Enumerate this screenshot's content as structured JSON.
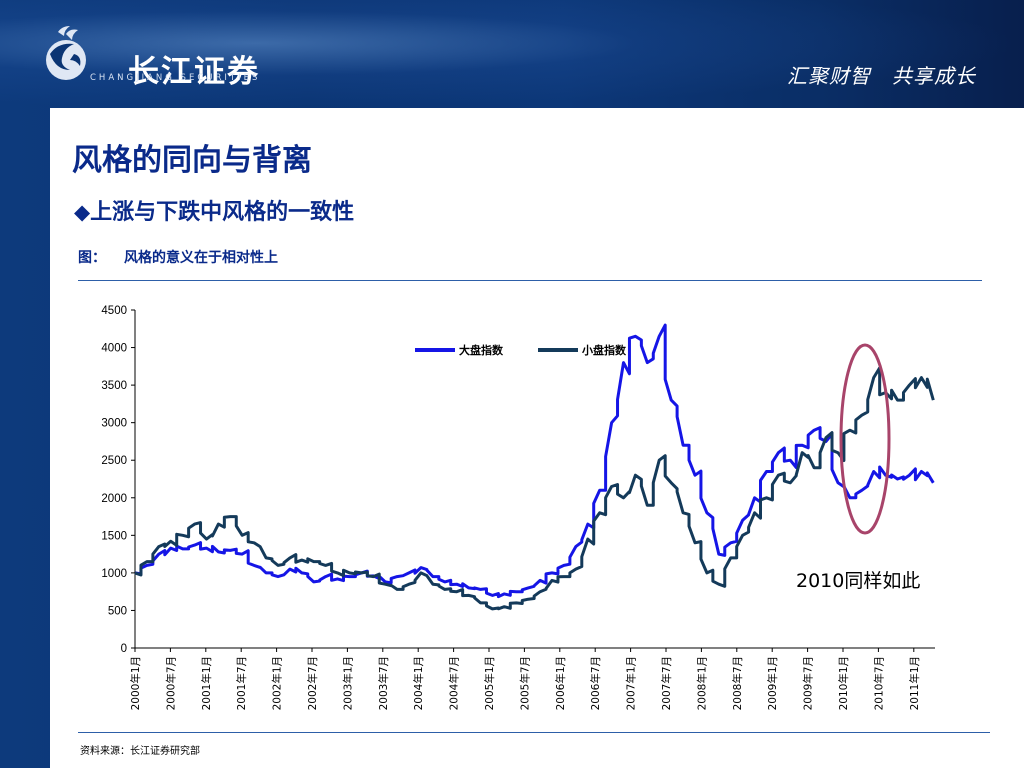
{
  "header": {
    "logo_cn": "长江证券",
    "logo_en": "CHANGJIANG SECURITIES",
    "slogan": "汇聚财智　共享成长"
  },
  "slide": {
    "title": "风格的同向与背离",
    "bullet_symbol": "◆",
    "bullet_text": "上涨与下跌中风格的一致性",
    "figure_prefix": "图：",
    "figure_caption": "风格的意义在于相对性上",
    "source": "资料来源：长江证券研究部"
  },
  "colors": {
    "large_cap": "#1515e6",
    "small_cap": "#143a5a",
    "circle": "#a8446a",
    "title": "#0a2a8a",
    "header_bg": "#0b3574"
  },
  "chart_data": {
    "type": "line",
    "ylim": [
      0,
      4500
    ],
    "yticks": [
      "4500",
      "4000",
      "3500",
      "3000",
      "2500",
      "2000",
      "1500",
      "1000",
      "500",
      "0"
    ],
    "categories": [
      "2000年1月",
      "2000年7月",
      "2001年1月",
      "2001年7月",
      "2002年1月",
      "2002年7月",
      "2003年1月",
      "2003年7月",
      "2004年1月",
      "2004年7月",
      "2005年1月",
      "2005年7月",
      "2006年1月",
      "2006年7月",
      "2007年1月",
      "2007年7月",
      "2008年1月",
      "2008年7月",
      "2009年1月",
      "2009年7月",
      "2010年1月",
      "2010年7月",
      "2011年1月"
    ],
    "legend": [
      "大盘指数",
      "小盘指数"
    ],
    "series": [
      {
        "name": "大盘指数",
        "color": "#1515e6",
        "values": [
          [
            0,
            1000
          ],
          [
            1,
            1100
          ],
          [
            2,
            1250
          ],
          [
            3,
            1330
          ],
          [
            4,
            1320
          ],
          [
            5,
            1370
          ],
          [
            6,
            1330
          ],
          [
            7,
            1280
          ],
          [
            8,
            1300
          ],
          [
            9,
            1250
          ],
          [
            10,
            1100
          ],
          [
            11,
            1000
          ],
          [
            12,
            950
          ],
          [
            13,
            1050
          ],
          [
            14,
            1000
          ],
          [
            15,
            880
          ],
          [
            16,
            950
          ],
          [
            17,
            920
          ],
          [
            18,
            950
          ],
          [
            19,
            1000
          ],
          [
            20,
            960
          ],
          [
            21,
            880
          ],
          [
            22,
            950
          ],
          [
            23,
            1000
          ],
          [
            24,
            1070
          ],
          [
            25,
            950
          ],
          [
            26,
            880
          ],
          [
            27,
            850
          ],
          [
            28,
            800
          ],
          [
            29,
            780
          ],
          [
            30,
            700
          ],
          [
            31,
            720
          ],
          [
            32,
            750
          ],
          [
            33,
            800
          ],
          [
            34,
            900
          ],
          [
            35,
            1000
          ],
          [
            36,
            1100
          ],
          [
            37,
            1350
          ],
          [
            38,
            1650
          ],
          [
            39,
            2100
          ],
          [
            40,
            3000
          ],
          [
            41,
            3800
          ],
          [
            42,
            4150
          ],
          [
            43,
            3800
          ],
          [
            44,
            4150
          ],
          [
            45,
            3300
          ],
          [
            46,
            2700
          ],
          [
            47,
            2300
          ],
          [
            48,
            1800
          ],
          [
            49,
            1250
          ],
          [
            50,
            1400
          ],
          [
            51,
            1700
          ],
          [
            52,
            2000
          ],
          [
            53,
            2350
          ],
          [
            54,
            2600
          ],
          [
            55,
            2500
          ],
          [
            56,
            2700
          ],
          [
            57,
            2900
          ],
          [
            58,
            2750
          ],
          [
            59,
            2200
          ],
          [
            60,
            2000
          ],
          [
            61,
            2100
          ],
          [
            62,
            2350
          ],
          [
            63,
            2300
          ],
          [
            64,
            2250
          ],
          [
            65,
            2300
          ],
          [
            66,
            2350
          ],
          [
            67,
            2200
          ]
        ]
      },
      {
        "name": "小盘指数",
        "color": "#143a5a",
        "values": [
          [
            0,
            1000
          ],
          [
            1,
            1150
          ],
          [
            2,
            1350
          ],
          [
            3,
            1420
          ],
          [
            4,
            1500
          ],
          [
            5,
            1650
          ],
          [
            6,
            1450
          ],
          [
            7,
            1650
          ],
          [
            8,
            1750
          ],
          [
            9,
            1500
          ],
          [
            10,
            1400
          ],
          [
            11,
            1200
          ],
          [
            12,
            1100
          ],
          [
            13,
            1200
          ],
          [
            14,
            1170
          ],
          [
            15,
            1150
          ],
          [
            16,
            1100
          ],
          [
            17,
            1000
          ],
          [
            18,
            1000
          ],
          [
            19,
            1000
          ],
          [
            20,
            950
          ],
          [
            21,
            850
          ],
          [
            22,
            780
          ],
          [
            23,
            850
          ],
          [
            24,
            1000
          ],
          [
            25,
            850
          ],
          [
            26,
            780
          ],
          [
            27,
            750
          ],
          [
            28,
            700
          ],
          [
            29,
            600
          ],
          [
            30,
            520
          ],
          [
            31,
            550
          ],
          [
            32,
            600
          ],
          [
            33,
            650
          ],
          [
            34,
            750
          ],
          [
            35,
            900
          ],
          [
            36,
            950
          ],
          [
            37,
            1050
          ],
          [
            38,
            1450
          ],
          [
            39,
            1800
          ],
          [
            40,
            2150
          ],
          [
            41,
            2000
          ],
          [
            42,
            2300
          ],
          [
            43,
            1900
          ],
          [
            44,
            2500
          ],
          [
            45,
            2200
          ],
          [
            46,
            1800
          ],
          [
            47,
            1400
          ],
          [
            48,
            1000
          ],
          [
            49,
            850
          ],
          [
            50,
            1200
          ],
          [
            51,
            1500
          ],
          [
            52,
            1800
          ],
          [
            53,
            2000
          ],
          [
            54,
            2300
          ],
          [
            55,
            2200
          ],
          [
            56,
            2600
          ],
          [
            57,
            2400
          ],
          [
            58,
            2800
          ],
          [
            59,
            2600
          ],
          [
            60,
            2900
          ],
          [
            61,
            3100
          ],
          [
            62,
            3600
          ],
          [
            63,
            3400
          ],
          [
            64,
            3300
          ],
          [
            65,
            3500
          ],
          [
            66,
            3600
          ],
          [
            67,
            3300
          ]
        ]
      }
    ],
    "annotation": "2010同样如此"
  }
}
